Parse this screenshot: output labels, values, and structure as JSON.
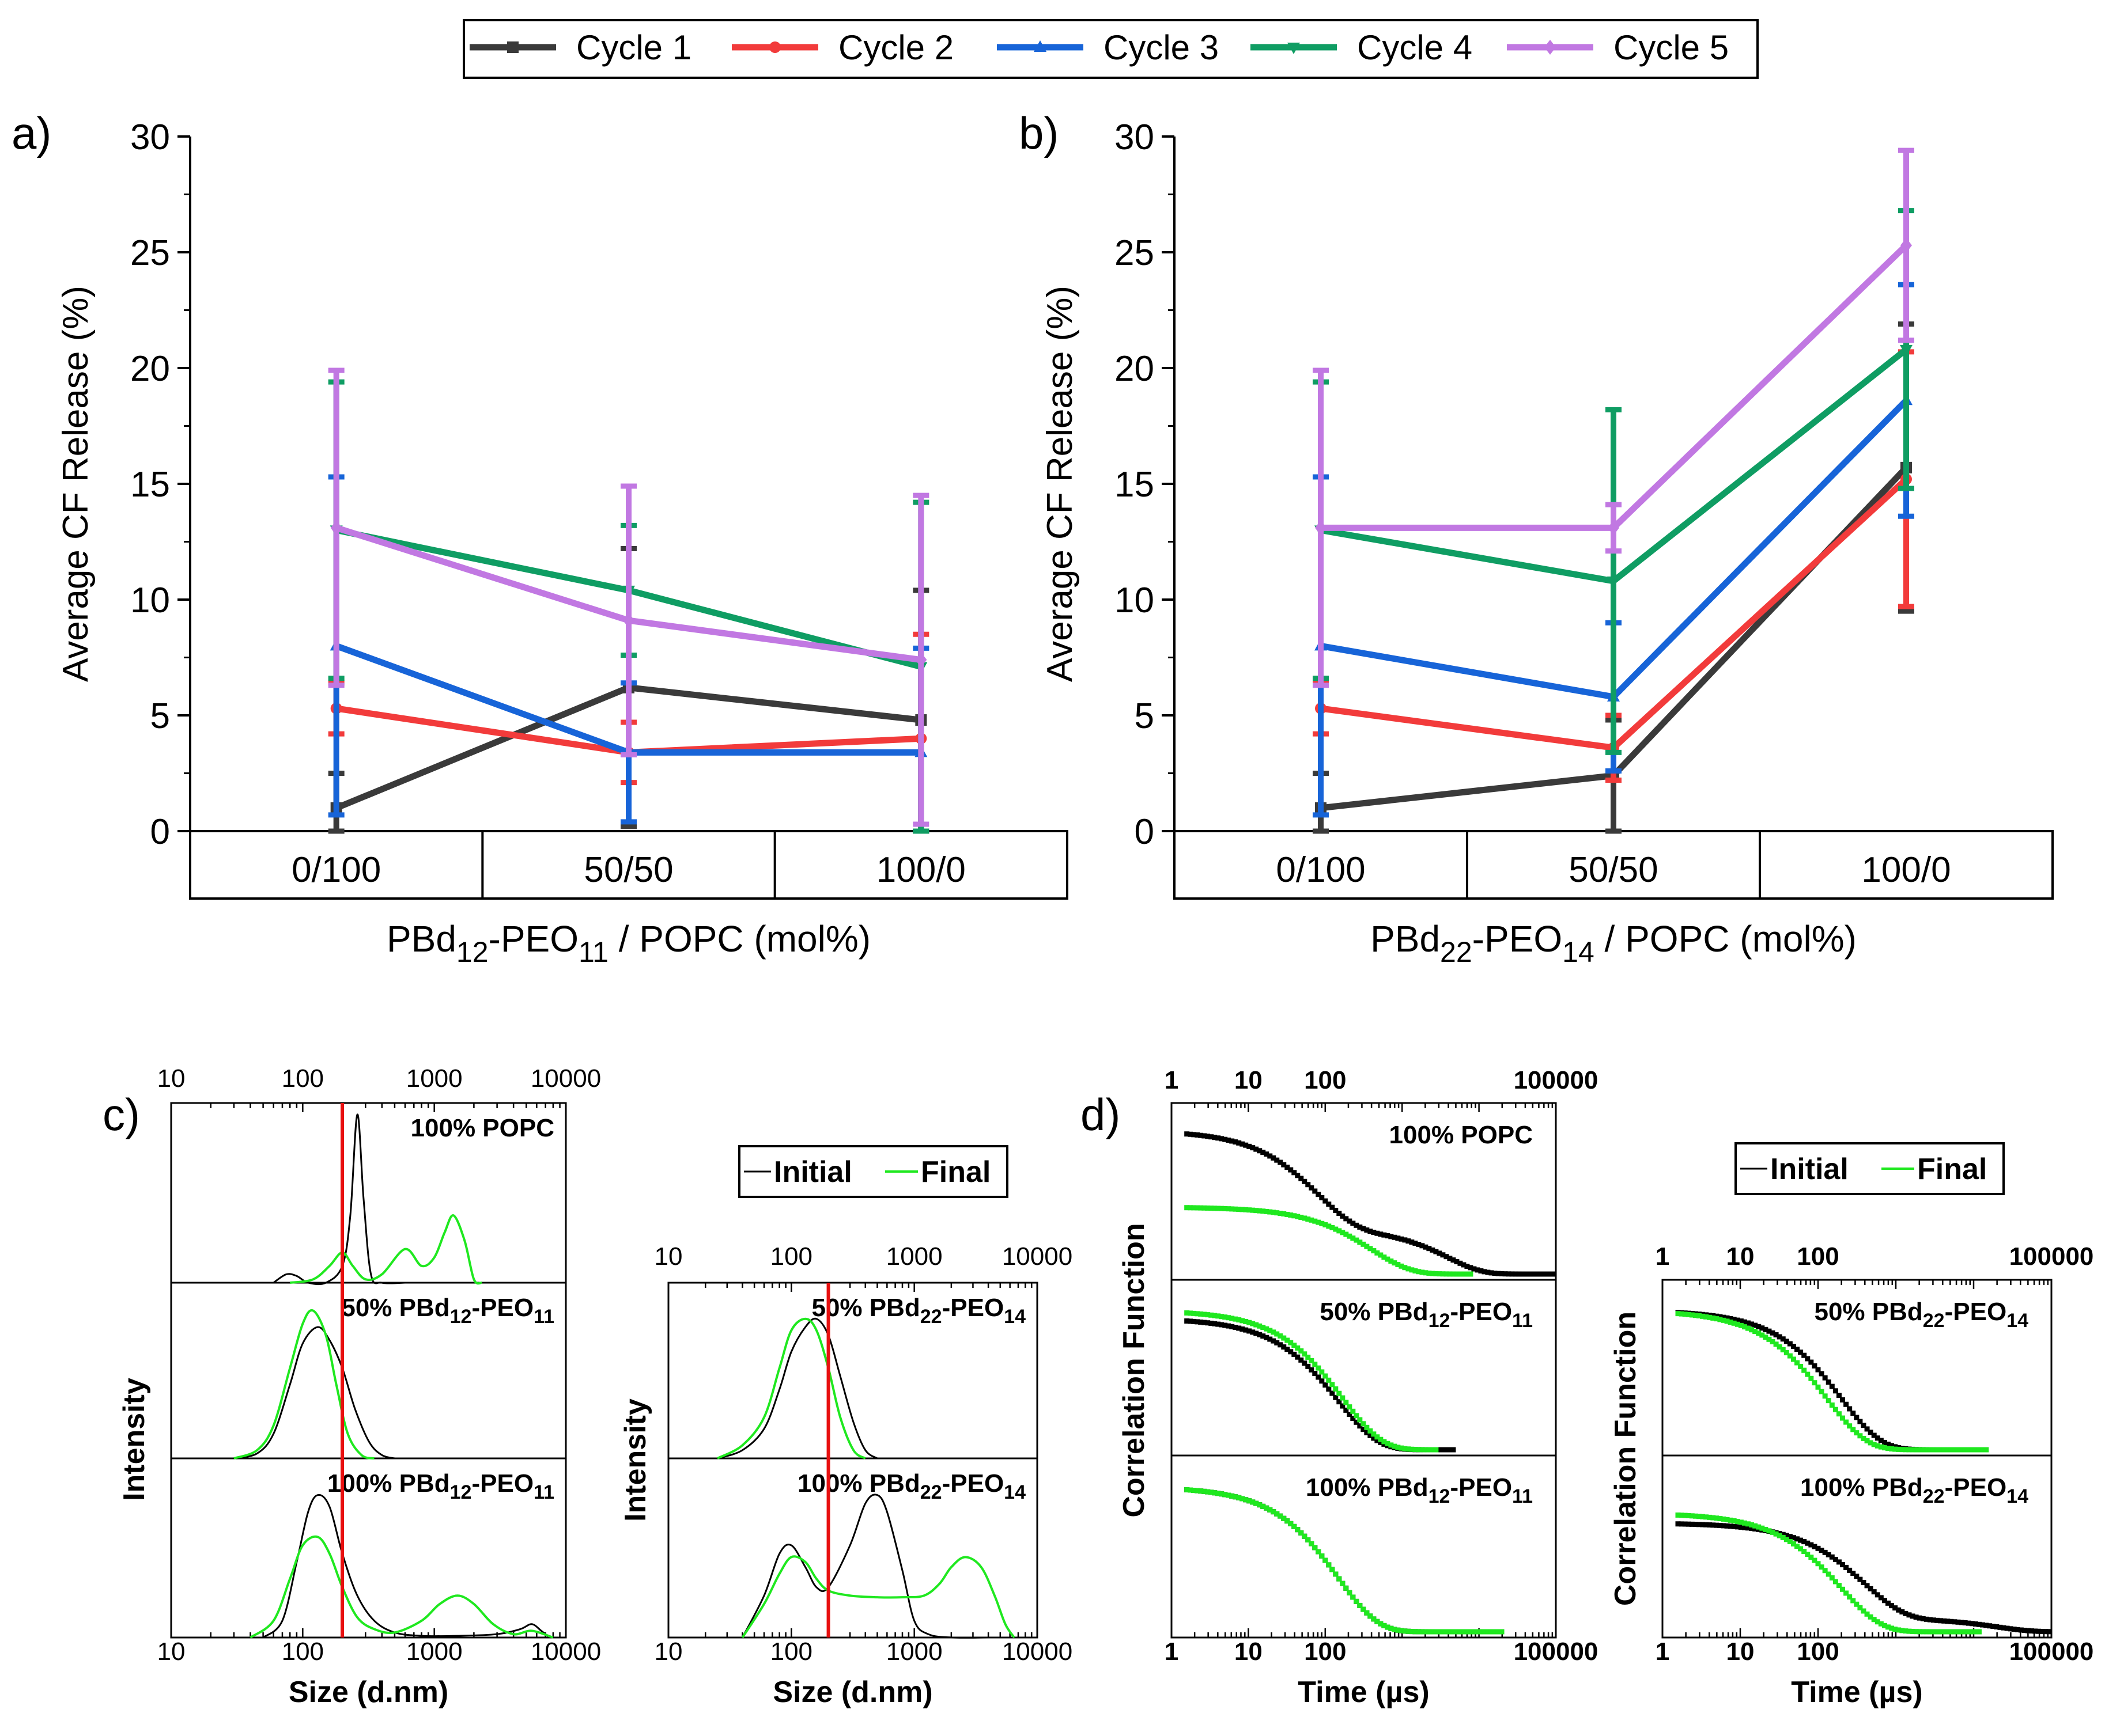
{
  "colors": {
    "c1": "#3a3a3a",
    "c2": "#f23b3b",
    "c3": "#1764d8",
    "c4": "#0f9d63",
    "c5": "#c178e2",
    "initial": "#000000",
    "final": "#1fe81f",
    "marker": "#e81010"
  },
  "legend_top": [
    "Cycle 1",
    "Cycle 2",
    "Cycle 3",
    "Cycle 4",
    "Cycle 5"
  ],
  "legend_small": {
    "initial": "Initial",
    "final": "Final"
  },
  "panel_letters": {
    "a": "a)",
    "b": "b)",
    "c": "c)",
    "d": "d)"
  },
  "chart_data": [
    {
      "type": "line",
      "panel": "a",
      "title": "",
      "ylabel": "Average CF Release (%)",
      "xlabel": "PBd12-PEO11 / POPC (mol%)",
      "xlabel_parts": [
        "PBd",
        "12",
        "-PEO",
        "11",
        " / POPC (mol%)"
      ],
      "categories": [
        "0/100",
        "50/50",
        "100/0"
      ],
      "ylim": [
        0,
        30
      ],
      "yticks": [
        "0",
        "5",
        "10",
        "15",
        "20",
        "25",
        "30"
      ],
      "series": [
        {
          "name": "Cycle 1",
          "values": [
            1.0,
            6.2,
            4.8
          ],
          "err": [
            1.5,
            6.0,
            5.6
          ]
        },
        {
          "name": "Cycle 2",
          "values": [
            5.3,
            3.4,
            4.0
          ],
          "err": [
            1.1,
            1.3,
            4.5
          ]
        },
        {
          "name": "Cycle 3",
          "values": [
            8.0,
            3.4,
            3.4
          ],
          "err": [
            7.3,
            3.0,
            4.5
          ]
        },
        {
          "name": "Cycle 4",
          "values": [
            13.0,
            10.4,
            7.1
          ],
          "err": [
            6.4,
            2.8,
            7.1
          ]
        },
        {
          "name": "Cycle 5",
          "values": [
            13.1,
            9.1,
            7.4
          ],
          "err": [
            6.8,
            5.8,
            7.1
          ]
        }
      ]
    },
    {
      "type": "line",
      "panel": "b",
      "title": "",
      "ylabel": "Average CF Release (%)",
      "xlabel": "PBd22-PEO14 / POPC (mol%)",
      "xlabel_parts": [
        "PBd",
        "22",
        "-PEO",
        "14",
        " / POPC (mol%)"
      ],
      "categories": [
        "0/100",
        "50/50",
        "100/0"
      ],
      "ylim": [
        0,
        30
      ],
      "yticks": [
        "0",
        "5",
        "10",
        "15",
        "20",
        "25",
        "30"
      ],
      "series": [
        {
          "name": "Cycle 1",
          "values": [
            1.0,
            2.4,
            15.7
          ],
          "err": [
            1.5,
            2.4,
            6.2
          ]
        },
        {
          "name": "Cycle 2",
          "values": [
            5.3,
            3.6,
            15.2
          ],
          "err": [
            1.1,
            1.4,
            5.5
          ]
        },
        {
          "name": "Cycle 3",
          "values": [
            8.0,
            5.8,
            18.6
          ],
          "err": [
            7.3,
            3.2,
            5.0
          ]
        },
        {
          "name": "Cycle 4",
          "values": [
            13.0,
            10.8,
            20.8
          ],
          "err": [
            6.4,
            7.4,
            6.0
          ]
        },
        {
          "name": "Cycle 5",
          "values": [
            13.1,
            13.1,
            25.3
          ],
          "err": [
            6.8,
            1.0,
            4.1
          ]
        }
      ]
    },
    {
      "type": "line",
      "panel": "c-left",
      "xlabel": "Size (d.nm)",
      "ylabel": "Intensity",
      "xscale": "log",
      "xlim": [
        10,
        10000
      ],
      "xticks": [
        "10",
        "100",
        "1000",
        "10000"
      ],
      "marker_line": 200,
      "subplots": [
        {
          "label": "100% POPC",
          "label_parts": [
            "100% POPC"
          ],
          "initial": {
            "x": [
              60,
              75,
              90,
              110,
              150,
              200,
              230,
              260,
              290,
              330,
              400,
              600
            ],
            "y": [
              0,
              0.05,
              0.04,
              0,
              0,
              0.1,
              0.4,
              1.0,
              0.5,
              0.05,
              0,
              0
            ]
          },
          "final": {
            "x": [
              80,
              120,
              160,
              200,
              240,
              300,
              400,
              600,
              800,
              1000,
              1200,
              1400,
              1700,
              2000,
              2300
            ],
            "y": [
              0,
              0.02,
              0.1,
              0.18,
              0.1,
              0.02,
              0.05,
              0.2,
              0.1,
              0.15,
              0.3,
              0.4,
              0.25,
              0.02,
              0
            ]
          }
        },
        {
          "label": "50% PBd12-PEO11",
          "label_parts": [
            "50% PBd",
            "12",
            "-PEO",
            "11"
          ],
          "initial": {
            "x": [
              30,
              45,
              60,
              80,
              100,
              130,
              160,
              200,
              250,
              320,
              400,
              500
            ],
            "y": [
              0,
              0.03,
              0.15,
              0.45,
              0.7,
              0.8,
              0.72,
              0.55,
              0.3,
              0.1,
              0.02,
              0
            ]
          },
          "final": {
            "x": [
              30,
              45,
              60,
              80,
              100,
              120,
              150,
              180,
              220,
              280,
              350
            ],
            "y": [
              0,
              0.05,
              0.2,
              0.55,
              0.82,
              0.9,
              0.75,
              0.45,
              0.15,
              0.02,
              0
            ]
          }
        },
        {
          "label": "100% PBd12-PEO11",
          "label_parts": [
            "100% PBd",
            "12",
            "-PEO",
            "11"
          ],
          "initial": {
            "x": [
              50,
              70,
              90,
              110,
              130,
              160,
              200,
              260,
              350,
              500,
              800,
              1500,
              3000,
              4500,
              5500,
              6500,
              7500
            ],
            "y": [
              0,
              0.1,
              0.45,
              0.75,
              0.85,
              0.78,
              0.5,
              0.25,
              0.1,
              0.03,
              0.01,
              0.01,
              0.02,
              0.05,
              0.08,
              0.04,
              0
            ]
          },
          "final": {
            "x": [
              40,
              60,
              80,
              100,
              130,
              160,
              200,
              260,
              350,
              500,
              800,
              1100,
              1500,
              2000,
              2800,
              4000,
              5500,
              8000
            ],
            "y": [
              0,
              0.1,
              0.35,
              0.55,
              0.6,
              0.5,
              0.3,
              0.12,
              0.05,
              0.03,
              0.1,
              0.2,
              0.25,
              0.2,
              0.08,
              0.02,
              0.04,
              0
            ]
          }
        }
      ]
    },
    {
      "type": "line",
      "panel": "c-right",
      "xlabel": "Size (d.nm)",
      "ylabel": "Intensity",
      "xscale": "log",
      "xlim": [
        10,
        10000
      ],
      "xticks": [
        "10",
        "100",
        "1000",
        "10000"
      ],
      "marker_line": 200,
      "subplots": [
        {
          "label": "50% PBd22-PEO14",
          "label_parts": [
            "50% PBd",
            "22",
            "-PEO",
            "14"
          ],
          "initial": {
            "x": [
              25,
              40,
              60,
              80,
              100,
              130,
              160,
              200,
              250,
              320,
              400,
              500
            ],
            "y": [
              0,
              0.05,
              0.18,
              0.42,
              0.65,
              0.8,
              0.85,
              0.75,
              0.5,
              0.22,
              0.05,
              0
            ]
          },
          "final": {
            "x": [
              25,
              40,
              60,
              80,
              100,
              130,
              160,
              200,
              250,
              320,
              400
            ],
            "y": [
              0,
              0.08,
              0.25,
              0.55,
              0.78,
              0.85,
              0.78,
              0.55,
              0.25,
              0.05,
              0
            ]
          }
        },
        {
          "label": "100% PBd22-PEO14",
          "label_parts": [
            "100% PBd",
            "22",
            "-PEO",
            "14"
          ],
          "initial": {
            "x": [
              40,
              60,
              80,
              100,
              130,
              160,
              200,
              300,
              400,
              500,
              600,
              800,
              1000,
              1300,
              2000,
              4000,
              6000
            ],
            "y": [
              0,
              0.25,
              0.5,
              0.55,
              0.42,
              0.3,
              0.3,
              0.55,
              0.8,
              0.85,
              0.75,
              0.4,
              0.1,
              0.02,
              0,
              0,
              0
            ]
          },
          "final": {
            "x": [
              40,
              60,
              80,
              100,
              130,
              160,
              200,
              300,
              500,
              800,
              1200,
              1600,
              2000,
              2600,
              3500,
              4500,
              5500,
              6500
            ],
            "y": [
              0,
              0.2,
              0.38,
              0.48,
              0.45,
              0.35,
              0.28,
              0.25,
              0.24,
              0.24,
              0.25,
              0.32,
              0.42,
              0.48,
              0.42,
              0.25,
              0.08,
              0
            ]
          }
        }
      ]
    },
    {
      "type": "scatter",
      "panel": "d-left",
      "xlabel": "Time (µs)",
      "ylabel": "Correlation Function",
      "xscale": "log",
      "xlim": [
        1,
        100000
      ],
      "xticks": [
        "1",
        "10",
        "100",
        "100000"
      ],
      "subplots": [
        {
          "label": "100% POPC",
          "label_parts": [
            "100% POPC"
          ],
          "initial": {
            "tau": 80,
            "plateau": 0.9,
            "tail": 0.28,
            "tau2": 4000,
            "end": 100000
          },
          "final": {
            "tau": 400,
            "plateau": 0.42,
            "end": 8000
          }
        },
        {
          "label": "50% PBd12-PEO11",
          "label_parts": [
            "50% PBd",
            "12",
            "-PEO",
            "11"
          ],
          "initial": {
            "tau": 150,
            "plateau": 0.83,
            "end": 5000
          },
          "final": {
            "tau": 170,
            "plateau": 0.88,
            "end": 3000
          }
        },
        {
          "label": "100% PBd12-PEO11",
          "label_parts": [
            "100% PBd",
            "12",
            "-PEO",
            "11"
          ],
          "initial": {
            "tau": 150,
            "plateau": 0.88,
            "end": 20000
          },
          "final": {
            "tau": 150,
            "plateau": 0.88,
            "end": 20000
          }
        }
      ]
    },
    {
      "type": "scatter",
      "panel": "d-right",
      "xlabel": "Time (µs)",
      "ylabel": "Correlation Function",
      "xscale": "log",
      "xlim": [
        1,
        100000
      ],
      "xticks": [
        "1",
        "10",
        "100",
        "100000"
      ],
      "subplots": [
        {
          "label": "50% PBd22-PEO14",
          "label_parts": [
            "50% PBd",
            "22",
            "-PEO",
            "14"
          ],
          "initial": {
            "tau": 200,
            "plateau": 0.88,
            "end": 15000
          },
          "final": {
            "tau": 130,
            "plateau": 0.88,
            "end": 15000
          }
        },
        {
          "label": "100% PBd22-PEO14",
          "label_parts": [
            "100% PBd",
            "22",
            "-PEO",
            "14"
          ],
          "initial": {
            "tau": 400,
            "plateau": 0.66,
            "tail": 0.08,
            "end": 100000
          },
          "final": {
            "tau": 200,
            "plateau": 0.72,
            "end": 12000
          }
        }
      ]
    }
  ]
}
